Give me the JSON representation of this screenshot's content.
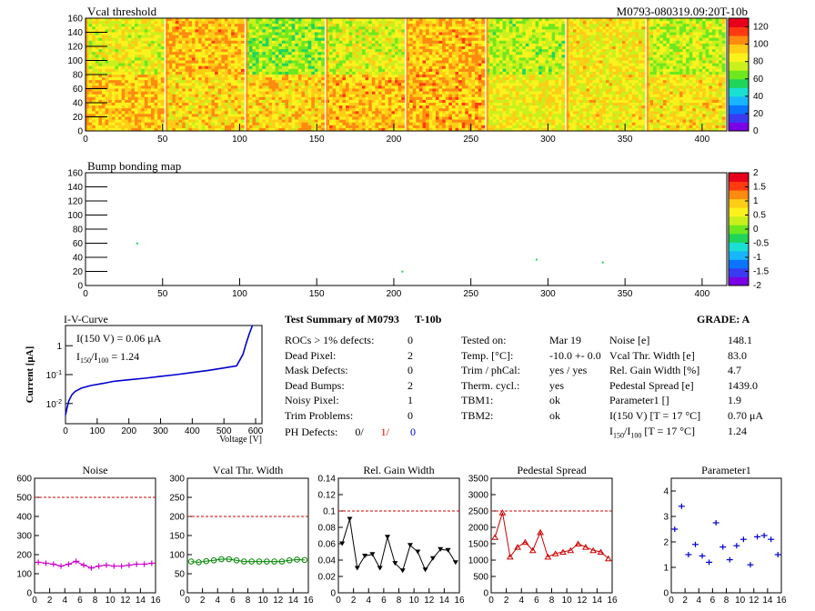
{
  "header": {
    "title": "Vcal threshold",
    "id": "M0793-080319.09:20T-10b"
  },
  "heatmap_top": {
    "title": "Vcal threshold",
    "xlim": [
      0,
      416
    ],
    "ylim": [
      0,
      160
    ],
    "xticks": [
      "0",
      "50",
      "100",
      "150",
      "200",
      "250",
      "300",
      "350",
      "400"
    ],
    "yticks": [
      "0",
      "20",
      "40",
      "60",
      "80",
      "100",
      "120",
      "140",
      "160"
    ],
    "zticks": [
      "0",
      "20",
      "40",
      "60",
      "80",
      "100",
      "120"
    ],
    "palette": [
      "#7a00e6",
      "#3a3af2",
      "#0a74ff",
      "#18b6ff",
      "#19e0d2",
      "#20d45a",
      "#6ee81e",
      "#c9f01c",
      "#fbf21c",
      "#ffcc16",
      "#ff8a10",
      "#ff3a10",
      "#e8001a"
    ]
  },
  "heatmap_bump": {
    "title": "Bump bonding map",
    "xticks": [
      "0",
      "50",
      "100",
      "150",
      "200",
      "250",
      "300",
      "350",
      "400"
    ],
    "yticks": [
      "0",
      "20",
      "40",
      "60",
      "80",
      "100",
      "120",
      "140",
      "160"
    ],
    "zticks": [
      "-2",
      "-1.5",
      "-1",
      "-0.5",
      "0",
      "0.5",
      "1",
      "1.5",
      "2"
    ]
  },
  "iv": {
    "title": "I-V-Curve",
    "ylabel": "Current [μA]",
    "xlabel": "Voltage [V]",
    "line1": "I(150 V) = 0.06 μA",
    "line2_a": "I",
    "line2_sub1": "150",
    "line2_b": "/I",
    "line2_sub2": "100",
    "line2_c": " =  1.24",
    "xticks": [
      "0",
      "100",
      "200",
      "300",
      "400",
      "500",
      "600"
    ],
    "yticks": [
      "10",
      "10",
      "1"
    ],
    "ysup": [
      "-2",
      "-1",
      ""
    ]
  },
  "summary": {
    "title": "Test Summary of M0793",
    "mode": "T-10b",
    "grade": "GRADE:  A",
    "left_labels": [
      "ROCs > 1% defects:",
      "Dead Pixel:",
      "Mask Defects:",
      "Dead Bumps:",
      "Noisy Pixel:",
      "Trim Problems:"
    ],
    "left_values": [
      "0",
      "2",
      "0",
      "2",
      "1",
      "0"
    ],
    "ph_label": "PH Defects:",
    "ph_values": [
      "0/",
      "1/",
      "0"
    ],
    "ph_colors": [
      "#000000",
      "#e00000",
      "#0000d0"
    ],
    "mid_labels": [
      "Tested on:",
      "Temp. [°C]:",
      "Trim / phCal:",
      "Therm. cycl.:",
      "TBM1:",
      "TBM2:"
    ],
    "mid_values": [
      "Mar 19",
      "-10.0 +- 0.0",
      "yes / yes",
      "yes",
      "ok",
      "ok"
    ],
    "right_labels": [
      "Noise [e]",
      "Vcal Thr. Width [e]",
      "Rel. Gain Width [%]",
      "Pedestal Spread [e]",
      "Parameter1 []",
      "I(150 V) [T = 17 °C]"
    ],
    "right_values": [
      "148.1",
      "83.0",
      "4.7",
      "1439.0",
      "1.9",
      "0.70 μA"
    ],
    "ratio_a": "I",
    "ratio_sub1": "150",
    "ratio_b": "/I",
    "ratio_sub2": "100",
    "ratio_c": "  [T = 17 °C]",
    "ratio_value": "1.24"
  },
  "chart_data": [
    {
      "type": "heatmap",
      "title": "Vcal threshold",
      "xlim": [
        0,
        416
      ],
      "ylim": [
        0,
        160
      ],
      "zlim": [
        0,
        130
      ],
      "roc_mean_values": {
        "bottom_row": [
          95,
          90,
          92,
          96,
          97,
          85,
          86,
          87
        ],
        "top_row": [
          82,
          96,
          70,
          80,
          96,
          74,
          86,
          76
        ]
      }
    },
    {
      "type": "heatmap",
      "title": "Bump bonding map",
      "xlim": [
        0,
        416
      ],
      "ylim": [
        0,
        160
      ],
      "zlim": [
        -2,
        2
      ],
      "points": [
        {
          "x": 33,
          "y": 61
        },
        {
          "x": 205,
          "y": 21
        },
        {
          "x": 292,
          "y": 38
        },
        {
          "x": 335,
          "y": 34
        }
      ]
    },
    {
      "type": "line",
      "title": "I-V-Curve",
      "xlabel": "Voltage [V]",
      "ylabel": "Current [μA]",
      "xlim": [
        0,
        620
      ],
      "ylog": true,
      "ylim": [
        0.002,
        5
      ],
      "x": [
        0,
        5,
        10,
        20,
        30,
        50,
        80,
        120,
        150,
        200,
        250,
        300,
        350,
        400,
        450,
        500,
        540,
        560,
        570,
        580,
        590
      ],
      "y": [
        0.004,
        0.007,
        0.012,
        0.02,
        0.026,
        0.034,
        0.042,
        0.05,
        0.058,
        0.066,
        0.075,
        0.087,
        0.1,
        0.118,
        0.14,
        0.17,
        0.2,
        0.5,
        1.2,
        2.6,
        5
      ]
    },
    {
      "type": "line",
      "title": "Noise",
      "xlim": [
        0,
        16
      ],
      "ylim": [
        0,
        600
      ],
      "xticks": [
        "0",
        "2",
        "4",
        "6",
        "8",
        "10",
        "12",
        "14",
        "16"
      ],
      "yticks": [
        "0",
        "100",
        "200",
        "300",
        "400",
        "500",
        "600"
      ],
      "threshold": 500,
      "color": "#cc00cc",
      "marker": "plus",
      "x": [
        0,
        1,
        2,
        3,
        4,
        5,
        6,
        7,
        8,
        9,
        10,
        11,
        12,
        13,
        14,
        15
      ],
      "y": [
        160,
        155,
        150,
        140,
        150,
        165,
        145,
        130,
        140,
        145,
        140,
        140,
        145,
        150,
        150,
        155
      ]
    },
    {
      "type": "line",
      "title": "Vcal Thr. Width",
      "xlim": [
        0,
        16
      ],
      "ylim": [
        0,
        300
      ],
      "xticks": [
        "0",
        "2",
        "4",
        "6",
        "8",
        "10",
        "12",
        "14",
        "16"
      ],
      "yticks": [
        "0",
        "50",
        "100",
        "150",
        "200",
        "250",
        "300"
      ],
      "threshold": 200,
      "color": "#008800",
      "marker": "circle",
      "x": [
        0,
        1,
        2,
        3,
        4,
        5,
        6,
        7,
        8,
        9,
        10,
        11,
        12,
        13,
        14,
        15
      ],
      "y": [
        82,
        80,
        83,
        85,
        88,
        88,
        85,
        82,
        82,
        82,
        82,
        82,
        82,
        85,
        87,
        86
      ]
    },
    {
      "type": "line",
      "title": "Rel. Gain Width",
      "xlim": [
        0,
        16
      ],
      "ylim": [
        0,
        0.14
      ],
      "xticks": [
        "0",
        "2",
        "4",
        "6",
        "8",
        "10",
        "12",
        "14",
        "16"
      ],
      "yticks": [
        "0",
        "0.02",
        "0.04",
        "0.06",
        "0.08",
        "0.1",
        "0.12",
        "0.14"
      ],
      "threshold": 0.1,
      "color": "#000000",
      "marker": "triangle-down",
      "x": [
        0,
        1,
        2,
        3,
        4,
        5,
        6,
        7,
        8,
        9,
        10,
        11,
        12,
        13,
        14,
        15
      ],
      "y": [
        0.06,
        0.09,
        0.03,
        0.045,
        0.047,
        0.03,
        0.068,
        0.036,
        0.027,
        0.058,
        0.05,
        0.028,
        0.042,
        0.053,
        0.052,
        0.037
      ]
    },
    {
      "type": "line",
      "title": "Pedestal Spread",
      "xlim": [
        0,
        16
      ],
      "ylim": [
        0,
        3500
      ],
      "xticks": [
        "0",
        "2",
        "4",
        "6",
        "8",
        "10",
        "12",
        "14",
        "16"
      ],
      "yticks": [
        "0",
        "500",
        "1000",
        "1500",
        "2000",
        "2500",
        "3000",
        "3500"
      ],
      "threshold": 2500,
      "color": "#cc0000",
      "marker": "triangle-up",
      "x": [
        0,
        1,
        2,
        3,
        4,
        5,
        6,
        7,
        8,
        9,
        10,
        11,
        12,
        13,
        14,
        15
      ],
      "y": [
        1700,
        2450,
        1100,
        1400,
        1550,
        1300,
        1850,
        1100,
        1200,
        1250,
        1300,
        1500,
        1400,
        1300,
        1250,
        1050
      ]
    },
    {
      "type": "scatter",
      "title": "Parameter1",
      "xlim": [
        0,
        16
      ],
      "ylim": [
        0,
        4.5
      ],
      "xticks": [
        "0",
        "2",
        "4",
        "6",
        "8",
        "10",
        "12",
        "14",
        "16"
      ],
      "yticks": [
        "0",
        "1",
        "2",
        "3",
        "4"
      ],
      "color": "#0000cc",
      "marker": "plus",
      "x": [
        0,
        1,
        2,
        3,
        4,
        5,
        6,
        7,
        8,
        9,
        10,
        11,
        12,
        13,
        14,
        15
      ],
      "y": [
        2.5,
        3.4,
        1.5,
        1.9,
        1.45,
        1.2,
        2.75,
        1.8,
        1.3,
        1.85,
        2.1,
        1.1,
        2.2,
        2.25,
        2.1,
        1.5
      ]
    }
  ]
}
